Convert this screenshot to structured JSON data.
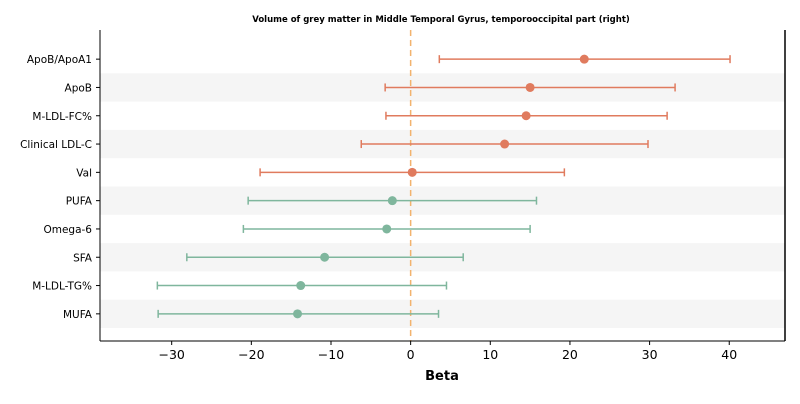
{
  "chart_data": {
    "type": "forest",
    "title": "Volume of grey matter in Middle Temporal Gyrus, temporooccipital part (right)",
    "xlabel": "Beta",
    "xlim": [
      -39,
      47
    ],
    "x_ticks": [
      -30,
      -20,
      -10,
      0,
      10,
      20,
      30,
      40
    ],
    "x_tick_labels": [
      "−30",
      "−20",
      "−10",
      "0",
      "10",
      "20",
      "30",
      "40"
    ],
    "reference_line": 0,
    "grid": false,
    "alternate_row_shading": true,
    "colors": {
      "positive": "#e07b5e",
      "negative": "#7fb69d",
      "reference": "#f2b36e",
      "shade": "#f5f5f5"
    },
    "rows": [
      {
        "label": "ApoB/ApoA1",
        "beta": 21.8,
        "lower": 3.6,
        "upper": 40.1
      },
      {
        "label": "ApoB",
        "beta": 15.0,
        "lower": -3.2,
        "upper": 33.2
      },
      {
        "label": "M-LDL-FC%",
        "beta": 14.5,
        "lower": -3.1,
        "upper": 32.2
      },
      {
        "label": "Clinical LDL-C",
        "beta": 11.8,
        "lower": -6.2,
        "upper": 29.8
      },
      {
        "label": "Val",
        "beta": 0.2,
        "lower": -18.9,
        "upper": 19.3
      },
      {
        "label": "PUFA",
        "beta": -2.3,
        "lower": -20.4,
        "upper": 15.8
      },
      {
        "label": "Omega-6",
        "beta": -3.0,
        "lower": -21.0,
        "upper": 15.0
      },
      {
        "label": "SFA",
        "beta": -10.8,
        "lower": -28.1,
        "upper": 6.6
      },
      {
        "label": "M-LDL-TG%",
        "beta": -13.8,
        "lower": -31.8,
        "upper": 4.5
      },
      {
        "label": "MUFA",
        "beta": -14.2,
        "lower": -31.7,
        "upper": 3.5
      }
    ]
  }
}
